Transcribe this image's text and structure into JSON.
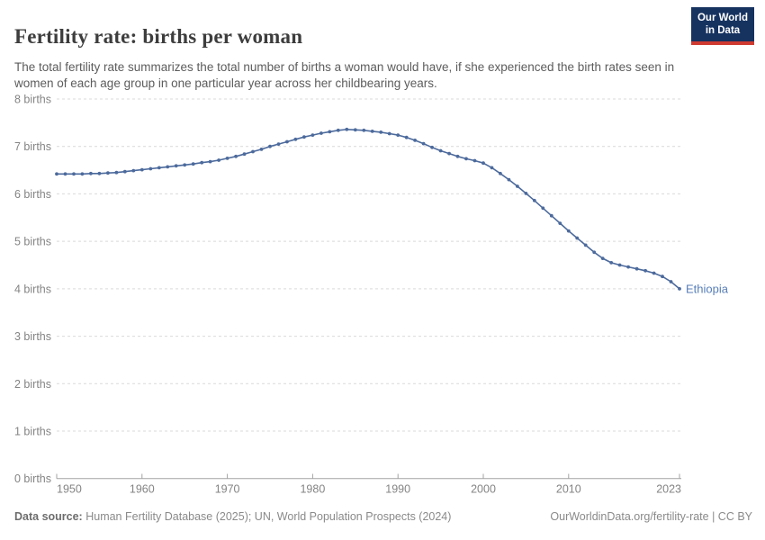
{
  "header": {
    "title": "Fertility rate: births per woman",
    "subtitle": "The total fertility rate summarizes the total number of births a woman would have, if she experienced the birth rates seen in women of each age group in one particular year across her childbearing years.",
    "logo": {
      "line1": "Our World",
      "line2": "in Data",
      "bg_color": "#163360",
      "bar_color": "#cf3a30"
    }
  },
  "footer": {
    "source_label": "Data source:",
    "source_text": "Human Fertility Database (2025); UN, World Population Prospects (2024)",
    "right_text": "OurWorldinData.org/fertility-rate | CC BY"
  },
  "chart_data": {
    "type": "line",
    "title": "Fertility rate: births per woman",
    "x": [
      1950,
      1951,
      1952,
      1953,
      1954,
      1955,
      1956,
      1957,
      1958,
      1959,
      1960,
      1961,
      1962,
      1963,
      1964,
      1965,
      1966,
      1967,
      1968,
      1969,
      1970,
      1971,
      1972,
      1973,
      1974,
      1975,
      1976,
      1977,
      1978,
      1979,
      1980,
      1981,
      1982,
      1983,
      1984,
      1985,
      1986,
      1987,
      1988,
      1989,
      1990,
      1991,
      1992,
      1993,
      1994,
      1995,
      1996,
      1997,
      1998,
      1999,
      2000,
      2001,
      2002,
      2003,
      2004,
      2005,
      2006,
      2007,
      2008,
      2009,
      2010,
      2011,
      2012,
      2013,
      2014,
      2015,
      2016,
      2017,
      2018,
      2019,
      2020,
      2021,
      2022,
      2023
    ],
    "series": [
      {
        "name": "Ethiopia",
        "color": "#4C6A9C",
        "label_color": "#577EB8",
        "values": [
          6.42,
          6.42,
          6.42,
          6.42,
          6.43,
          6.43,
          6.44,
          6.45,
          6.47,
          6.49,
          6.51,
          6.53,
          6.55,
          6.57,
          6.59,
          6.61,
          6.63,
          6.66,
          6.68,
          6.71,
          6.75,
          6.79,
          6.84,
          6.89,
          6.94,
          7.0,
          7.05,
          7.1,
          7.15,
          7.2,
          7.24,
          7.28,
          7.31,
          7.34,
          7.36,
          7.35,
          7.34,
          7.32,
          7.3,
          7.27,
          7.24,
          7.19,
          7.13,
          7.06,
          6.98,
          6.91,
          6.85,
          6.79,
          6.74,
          6.7,
          6.65,
          6.55,
          6.43,
          6.3,
          6.16,
          6.01,
          5.86,
          5.7,
          5.54,
          5.38,
          5.22,
          5.07,
          4.92,
          4.77,
          4.64,
          4.55,
          4.5,
          4.46,
          4.42,
          4.38,
          4.33,
          4.26,
          4.15,
          4.0
        ]
      }
    ],
    "xlabel": "",
    "ylabel": "",
    "ylim": [
      0,
      8
    ],
    "ytick_values": [
      0,
      1,
      2,
      3,
      4,
      5,
      6,
      7,
      8
    ],
    "ytick_labels": [
      "0 births",
      "1 births",
      "2 births",
      "3 births",
      "4 births",
      "5 births",
      "6 births",
      "7 births",
      "8 births"
    ],
    "xticks": [
      1950,
      1960,
      1970,
      1980,
      1990,
      2000,
      2010,
      2023
    ],
    "grid": "horizontal-dashed",
    "legend": "series-end-label"
  }
}
